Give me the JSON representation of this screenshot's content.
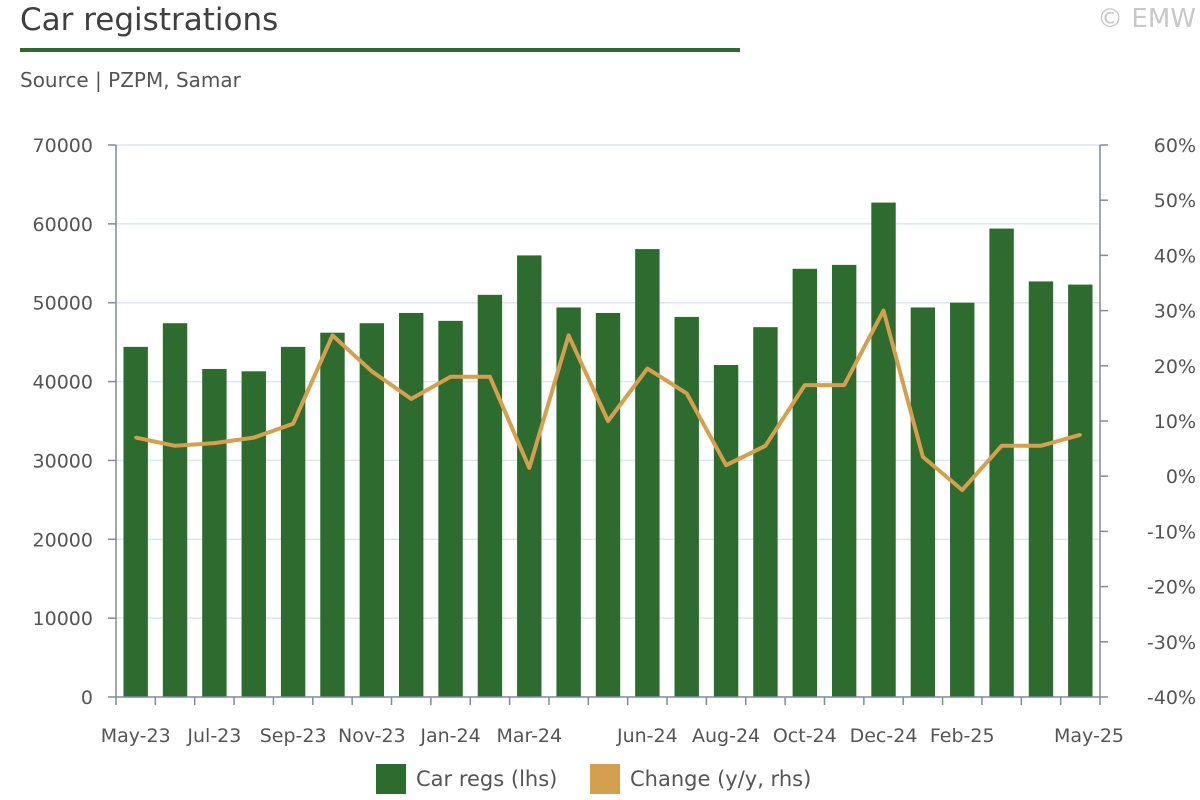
{
  "header": {
    "title": "Car registrations",
    "source": "Source | PZPM, Samar",
    "copyright": "© EMW"
  },
  "colors": {
    "bars": "#2e6b2e",
    "line": "#d4a04f",
    "grid": "#dce6ee",
    "axis": "#7f8c99"
  },
  "chart_data": {
    "type": "bar+line",
    "categories": [
      "May-23",
      "Jun-23",
      "Jul-23",
      "Aug-23",
      "Sep-23",
      "Oct-23",
      "Nov-23",
      "Dec-23",
      "Jan-24",
      "Feb-24",
      "Mar-24",
      "Apr-24",
      "May-24",
      "Jun-24",
      "Jul-24",
      "Aug-24",
      "Sep-24",
      "Oct-24",
      "Nov-24",
      "Dec-24",
      "Jan-25",
      "Feb-25",
      "Mar-25",
      "Apr-25",
      "May-25"
    ],
    "x_tick_labels": [
      "May-23",
      "Jul-23",
      "Sep-23",
      "Nov-23",
      "Jan-24",
      "Mar-24",
      "Jun-24",
      "Aug-24",
      "Oct-24",
      "Dec-24",
      "Feb-25",
      "May-25"
    ],
    "x_tick_indices": [
      0,
      2,
      4,
      6,
      8,
      10,
      13,
      15,
      17,
      19,
      21,
      24
    ],
    "series": [
      {
        "name": "Car regs (lhs)",
        "type": "bar",
        "axis": "left",
        "values": [
          44400,
          47400,
          41600,
          41300,
          44400,
          46200,
          47400,
          48700,
          47700,
          51000,
          56000,
          49400,
          48700,
          56800,
          48200,
          42100,
          46900,
          54300,
          54800,
          62700,
          49400,
          50000,
          59400,
          52700,
          52300
        ]
      },
      {
        "name": "Change (y/y, rhs)",
        "type": "line",
        "axis": "right",
        "unit": "%",
        "values": [
          7,
          5.5,
          6,
          7,
          9.5,
          25.5,
          19,
          14,
          18,
          18,
          1.5,
          25.5,
          10,
          19.5,
          15,
          2,
          5.5,
          16.5,
          16.5,
          30,
          3.5,
          -2.5,
          5.5,
          5.5,
          7.5
        ]
      }
    ],
    "y_left": {
      "min": 0,
      "max": 70000,
      "ticks": [
        0,
        10000,
        20000,
        30000,
        40000,
        50000,
        60000,
        70000
      ]
    },
    "y_right": {
      "min": -40,
      "max": 60,
      "ticks": [
        -40,
        -30,
        -20,
        -10,
        0,
        10,
        20,
        30,
        40,
        50,
        60
      ],
      "format": "percent"
    },
    "grid": true,
    "legend_position": "bottom"
  }
}
